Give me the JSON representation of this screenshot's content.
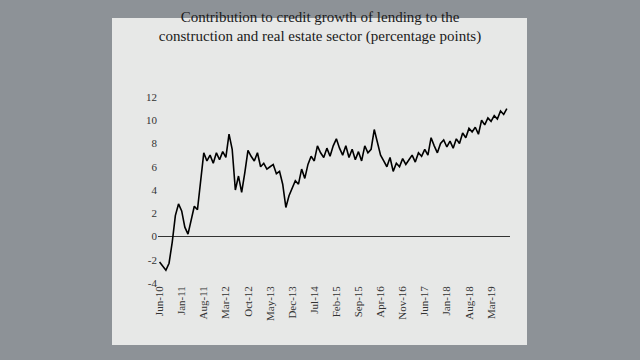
{
  "chart_data": {
    "type": "line",
    "title": "Contribution to credit growth of lending to the\nconstruction and real estate sector (percentage points)",
    "categories": [
      "Jun-10",
      null,
      null,
      null,
      null,
      null,
      null,
      "Jan-11",
      null,
      null,
      null,
      null,
      null,
      null,
      "Aug-11",
      null,
      null,
      null,
      null,
      null,
      null,
      "Mar-12",
      null,
      null,
      null,
      null,
      null,
      null,
      "Oct-12",
      null,
      null,
      null,
      null,
      null,
      null,
      "May-13",
      null,
      null,
      null,
      null,
      null,
      null,
      "Dec-13",
      null,
      null,
      null,
      null,
      null,
      null,
      "Jul-14",
      null,
      null,
      null,
      null,
      null,
      null,
      "Feb-15",
      null,
      null,
      null,
      null,
      null,
      null,
      "Sep-15",
      null,
      null,
      null,
      null,
      null,
      null,
      "Apr-16",
      null,
      null,
      null,
      null,
      null,
      null,
      "Nov-16",
      null,
      null,
      null,
      null,
      null,
      null,
      "Jun-17",
      null,
      null,
      null,
      null,
      null,
      null,
      "Jan-18",
      null,
      null,
      null,
      null,
      null,
      null,
      "Aug-18",
      null,
      null,
      null,
      null,
      null,
      null,
      "Mar-19",
      null,
      null,
      null,
      null,
      null
    ],
    "values": [
      -2.2,
      -2.6,
      -2.9,
      -2.3,
      -0.5,
      1.8,
      2.8,
      2.2,
      0.8,
      0.2,
      1.5,
      2.6,
      2.3,
      4.5,
      7.2,
      6.5,
      7.0,
      6.3,
      7.2,
      6.6,
      7.3,
      6.8,
      8.8,
      7.5,
      4.0,
      5.2,
      3.8,
      5.5,
      7.4,
      6.9,
      6.5,
      7.2,
      6.0,
      6.3,
      5.8,
      6.0,
      6.2,
      5.4,
      5.6,
      4.5,
      2.5,
      3.5,
      4.2,
      4.8,
      4.5,
      5.8,
      5.0,
      6.2,
      6.9,
      6.5,
      7.8,
      7.2,
      6.8,
      7.6,
      6.9,
      7.8,
      8.4,
      7.6,
      7.0,
      7.8,
      6.8,
      7.5,
      6.6,
      7.3,
      6.5,
      7.8,
      7.2,
      7.5,
      9.2,
      8.0,
      7.0,
      6.5,
      6.0,
      6.8,
      5.6,
      6.3,
      6.0,
      6.7,
      6.2,
      6.6,
      7.0,
      6.4,
      7.2,
      6.9,
      7.5,
      7.0,
      8.5,
      7.8,
      7.2,
      8.0,
      8.3,
      7.7,
      8.2,
      7.6,
      8.4,
      8.0,
      8.9,
      8.5,
      9.3,
      9.0,
      9.4,
      8.8,
      10.0,
      9.6,
      10.2,
      9.9,
      10.4,
      10.1,
      10.8,
      10.5,
      11.0
    ],
    "color": "#000000",
    "ylim": [
      -4,
      12
    ],
    "yticks": [
      -4,
      -2,
      0,
      2,
      4,
      6,
      8,
      10,
      12
    ],
    "grid": false
  }
}
